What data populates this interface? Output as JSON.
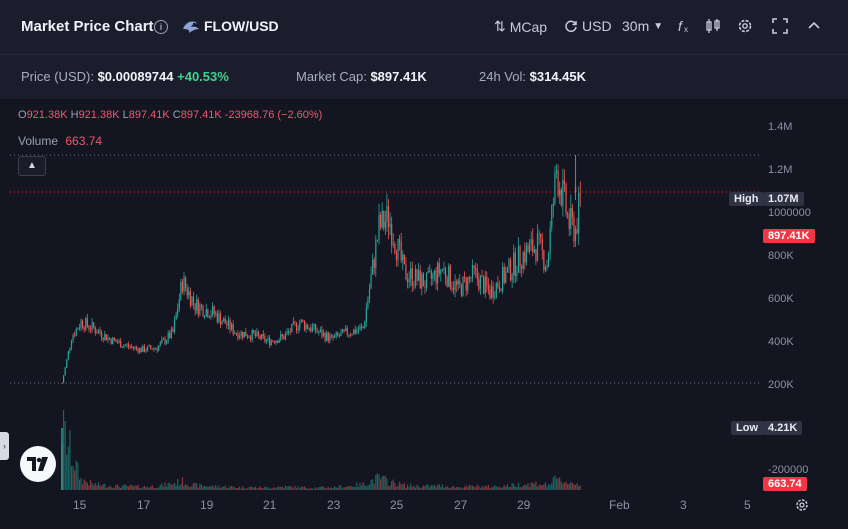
{
  "header": {
    "title": "Market Price Chart",
    "info_icon": "info-icon",
    "pair": "FLOW/USD",
    "mcap_label": "MCap",
    "currency_label": "USD",
    "interval_label": "30m"
  },
  "stats": {
    "price_label": "Price (USD):",
    "price_value": "$0.00089744",
    "price_change": "+40.53%",
    "mcap_label": "Market Cap:",
    "mcap_value": "$897.41K",
    "vol_label": "24h Vol:",
    "vol_value": "$314.45K"
  },
  "legend": {
    "o_label": "O",
    "o_value": "921.38K",
    "h_label": "H",
    "h_value": "921.38K",
    "l_label": "L",
    "l_value": "897.41K",
    "c_label": "C",
    "c_value": "897.41K",
    "change": "-23968.76 (−2.60%)",
    "volume_label": "Volume",
    "volume_value": "663.74"
  },
  "price_tags": {
    "high_label": "High",
    "high_value": "1.07M",
    "current_value": "897.41K",
    "low_label": "Low",
    "low_value": "4.21K",
    "volume_value": "663.74"
  },
  "colors": {
    "up": "#26a69a",
    "down": "#ef5350",
    "accent": "#f23645",
    "background": "#131521"
  },
  "chart_data": {
    "type": "line",
    "title": "",
    "ylim": [
      -200000,
      1500000
    ],
    "y_ticks": [
      "1.4M",
      "1.2M",
      "1000000",
      "800K",
      "600K",
      "400K",
      "200K",
      "-200000"
    ],
    "x_ticks": [
      "15",
      "17",
      "19",
      "21",
      "23",
      "25",
      "27",
      "29",
      "Feb",
      "3",
      "5"
    ],
    "x": [
      "14",
      "14.3",
      "14.6",
      "15",
      "15.5",
      "16",
      "16.5",
      "17",
      "17.5",
      "17.8",
      "18.2",
      "18.8",
      "19.5",
      "20",
      "20.5",
      "21",
      "21.5",
      "22",
      "22.5",
      "23",
      "23.5",
      "24",
      "24.3",
      "24.8",
      "25.5",
      "26",
      "26.5",
      "27",
      "27.5",
      "28",
      "28.5",
      "29",
      "29.3",
      "29.6",
      "30",
      "30.2",
      "30.4"
    ],
    "series": [
      {
        "values": [
          4210,
          220000,
          290000,
          260000,
          210000,
          180000,
          160000,
          170000,
          240000,
          480000,
          370000,
          330000,
          240000,
          230000,
          200000,
          220000,
          290000,
          250000,
          210000,
          240000,
          260000,
          730000,
          780000,
          520000,
          470000,
          540000,
          440000,
          510000,
          430000,
          510000,
          600000,
          650000,
          560000,
          1000000,
          750000,
          720000,
          897410
        ]
      }
    ],
    "volume": [
      663,
      380,
      110,
      60,
      45,
      40,
      35,
      40,
      70,
      90,
      50,
      40,
      30,
      30,
      25,
      35,
      30,
      25,
      30,
      40,
      60,
      130,
      90,
      50,
      40,
      45,
      30,
      40,
      35,
      45,
      60,
      70,
      55,
      110,
      80,
      70,
      60
    ]
  }
}
